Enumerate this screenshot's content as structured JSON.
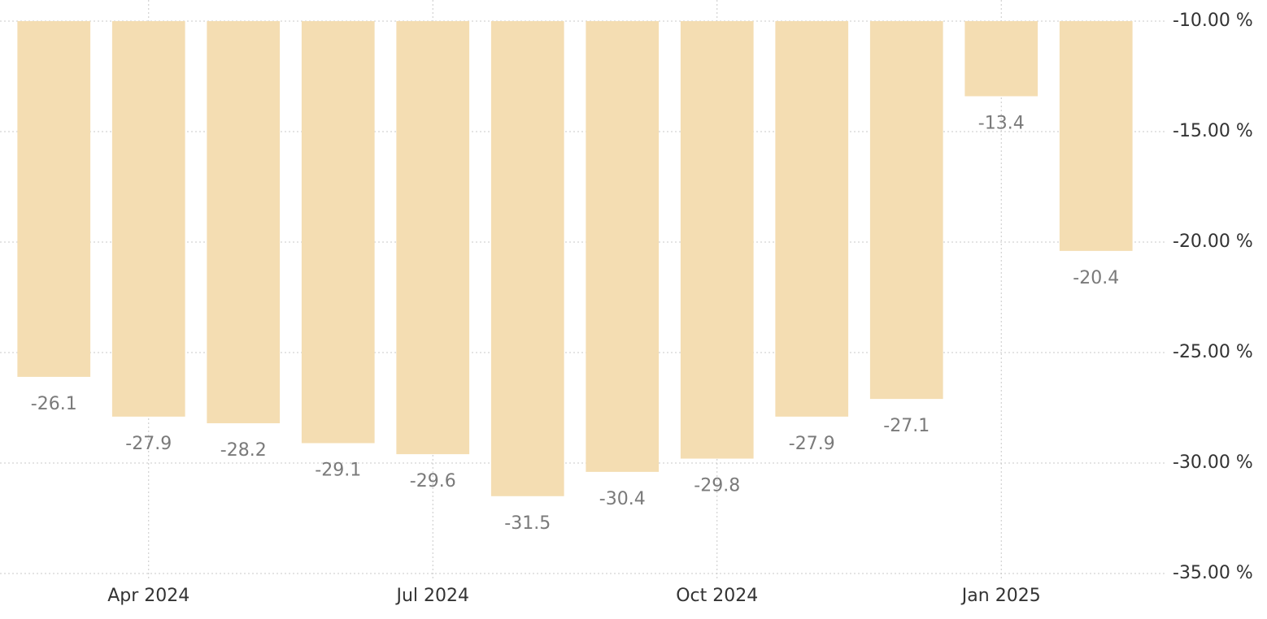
{
  "chart_data": {
    "type": "bar",
    "categories": [
      null,
      "Apr 2024",
      null,
      null,
      "Jul 2024",
      null,
      null,
      "Oct 2024",
      null,
      null,
      "Jan 2025",
      null
    ],
    "values": [
      -26.1,
      -27.9,
      -28.2,
      -29.1,
      -29.6,
      -31.5,
      -30.4,
      -29.8,
      -27.9,
      -27.1,
      -13.4,
      -20.4
    ],
    "color": "#f4ddb2",
    "ylim": [
      -35,
      -10
    ],
    "yticks": [
      {
        "value": -10,
        "label": "-10.00 %"
      },
      {
        "value": -15,
        "label": "-15.00 %"
      },
      {
        "value": -20,
        "label": "-20.00 %"
      },
      {
        "value": -25,
        "label": "-25.00 %"
      },
      {
        "value": -30,
        "label": "-30.00 %"
      },
      {
        "value": -35,
        "label": "-35.00 %"
      }
    ],
    "grid": true
  }
}
